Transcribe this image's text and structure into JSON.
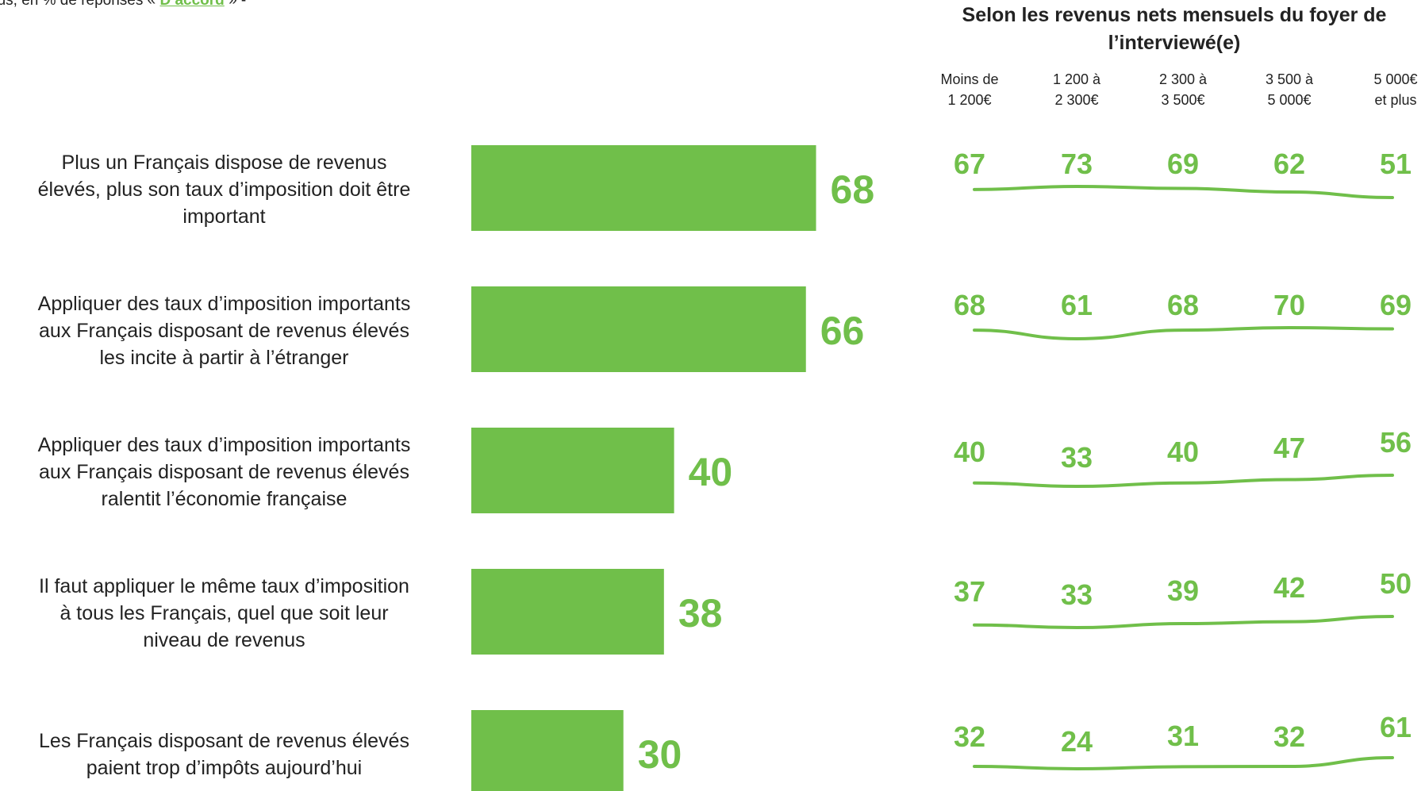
{
  "subtitle": {
    "prefix": "ous, en % de réponses « ",
    "accent": "D’accord",
    "suffix": " » -"
  },
  "breakdown": {
    "title": "Selon les revenus nets mensuels du foyer de l’interviewé(e)",
    "columns": [
      {
        "line1": "Moins de",
        "line2": "1 200€"
      },
      {
        "line1": "1 200 à",
        "line2": "2 300€"
      },
      {
        "line1": "2 300 à",
        "line2": "3 500€"
      },
      {
        "line1": "3 500 à",
        "line2": "5 000€"
      },
      {
        "line1": "5 000€",
        "line2": "et plus"
      }
    ]
  },
  "colors": {
    "accent": "#70BF4A",
    "text": "#222222"
  },
  "chart_data": {
    "type": "bar",
    "orientation": "horizontal",
    "categories": [
      "Plus un Français dispose de revenus élevés, plus son taux d’imposition doit être important",
      "Appliquer des taux d’imposition importants aux Français disposant de revenus élevés les incite à partir à l’étranger",
      "Appliquer des taux d’imposition importants aux Français disposant de revenus élevés ralentit l’économie française",
      "Il faut appliquer le même taux d’imposition à tous les Français, quel que soit leur niveau de revenus",
      "Les Français disposant de revenus élevés paient trop d’impôts aujourd’hui"
    ],
    "category_lines": [
      [
        "Plus un Français dispose de revenus",
        "élevés, plus son taux d’imposition doit être",
        "important"
      ],
      [
        "Appliquer des taux d’imposition importants",
        "aux Français disposant de revenus élevés",
        "les incite à partir à l’étranger"
      ],
      [
        "Appliquer des taux d’imposition importants",
        "aux Français disposant de revenus élevés",
        "ralentit l’économie française"
      ],
      [
        "Il faut appliquer le même taux d’imposition",
        "à tous les Français, quel que soit leur",
        "niveau de revenus"
      ],
      [
        "Les Français disposant de revenus élevés",
        "paient trop d’impôts aujourd’hui"
      ]
    ],
    "values": [
      68,
      66,
      40,
      38,
      30
    ],
    "breakdown_values": [
      [
        67,
        73,
        69,
        62,
        51
      ],
      [
        68,
        61,
        68,
        70,
        69
      ],
      [
        40,
        33,
        40,
        47,
        56
      ],
      [
        37,
        33,
        39,
        42,
        50
      ],
      [
        32,
        24,
        31,
        32,
        61
      ]
    ],
    "unit": "%",
    "grid": false,
    "legend": "none"
  }
}
